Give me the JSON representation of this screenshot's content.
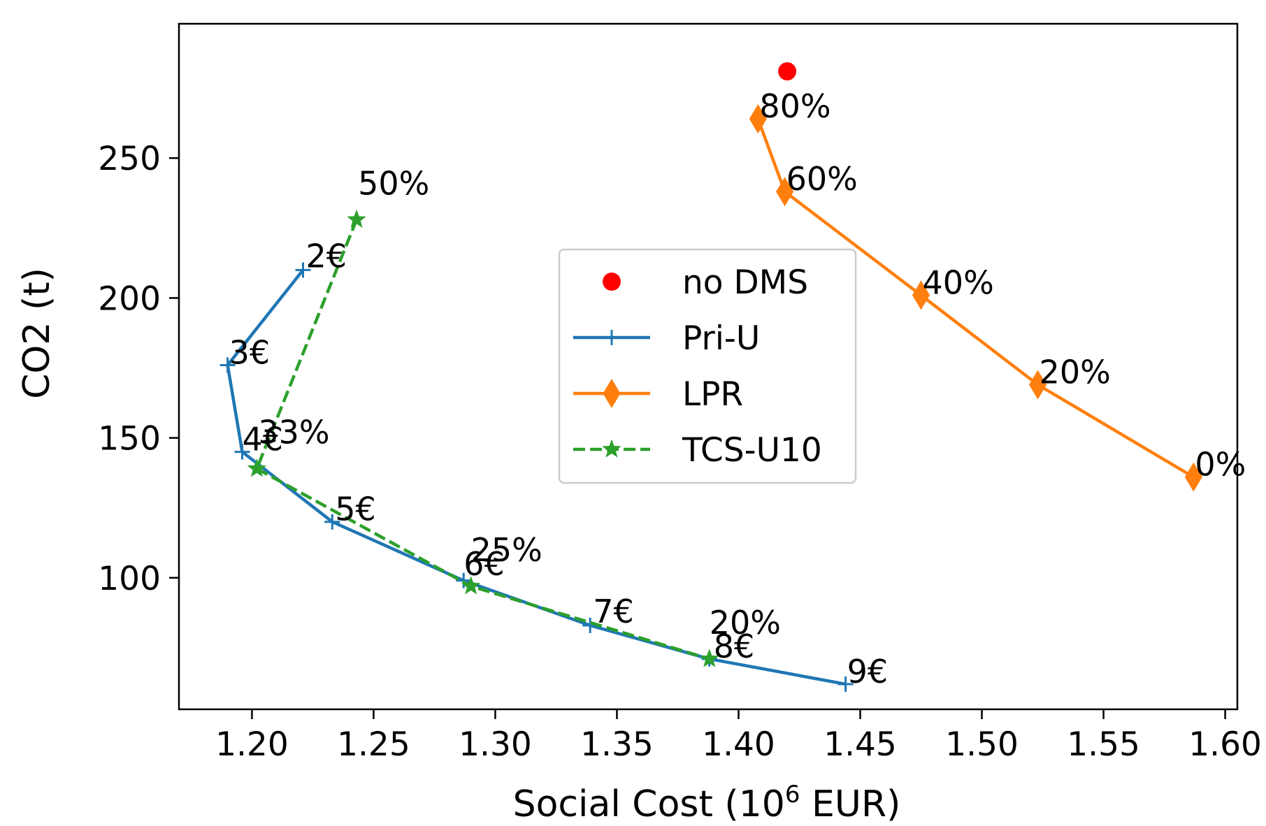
{
  "chart_data": {
    "type": "line",
    "xlabel_main": "Social Cost (10",
    "xlabel_sup": "6",
    "xlabel_end": " EUR)",
    "ylabel": "CO2 (t)",
    "xlim": [
      1.17,
      1.605
    ],
    "ylim": [
      53,
      298
    ],
    "xticks": [
      {
        "value": 1.2,
        "label": "1.20"
      },
      {
        "value": 1.25,
        "label": "1.25"
      },
      {
        "value": 1.3,
        "label": "1.30"
      },
      {
        "value": 1.35,
        "label": "1.35"
      },
      {
        "value": 1.4,
        "label": "1.40"
      },
      {
        "value": 1.45,
        "label": "1.45"
      },
      {
        "value": 1.5,
        "label": "1.50"
      },
      {
        "value": 1.55,
        "label": "1.55"
      },
      {
        "value": 1.6,
        "label": "1.60"
      }
    ],
    "yticks": [
      {
        "value": 100,
        "label": "100"
      },
      {
        "value": 150,
        "label": "150"
      },
      {
        "value": 200,
        "label": "200"
      },
      {
        "value": 250,
        "label": "250"
      }
    ],
    "legend": {
      "placement": "center"
    },
    "series": [
      {
        "name": "no DMS",
        "marker": "circle",
        "line": "none",
        "color": "#ff0000",
        "points": [
          {
            "x": 1.42,
            "y": 281,
            "label": ""
          }
        ]
      },
      {
        "name": "Pri-U",
        "marker": "plus",
        "line": "solid",
        "color": "#1f77b4",
        "points": [
          {
            "x": 1.221,
            "y": 210,
            "label": "2€"
          },
          {
            "x": 1.19,
            "y": 176,
            "label": "3€"
          },
          {
            "x": 1.196,
            "y": 145,
            "label": "4€"
          },
          {
            "x": 1.233,
            "y": 120,
            "label": "5€"
          },
          {
            "x": 1.287,
            "y": 99,
            "label": "6€"
          },
          {
            "x": 1.339,
            "y": 83,
            "label": "7€"
          },
          {
            "x": 1.388,
            "y": 71,
            "label": "8€"
          },
          {
            "x": 1.444,
            "y": 62,
            "label": "9€"
          }
        ]
      },
      {
        "name": "LPR",
        "marker": "diamond",
        "line": "solid",
        "color": "#ff7f0e",
        "points": [
          {
            "x": 1.408,
            "y": 264,
            "label": "80%"
          },
          {
            "x": 1.419,
            "y": 238,
            "label": "60%"
          },
          {
            "x": 1.475,
            "y": 201,
            "label": "40%"
          },
          {
            "x": 1.523,
            "y": 169,
            "label": "20%"
          },
          {
            "x": 1.587,
            "y": 136,
            "label": "0%"
          }
        ]
      },
      {
        "name": "TCS-U10",
        "marker": "star",
        "line": "dashed",
        "color": "#2ca02c",
        "points": [
          {
            "x": 1.243,
            "y": 228,
            "label": "50%"
          },
          {
            "x": 1.202,
            "y": 139,
            "label": "33%"
          },
          {
            "x": 1.29,
            "y": 97,
            "label": "25%"
          },
          {
            "x": 1.388,
            "y": 71,
            "label": "20%"
          }
        ]
      }
    ]
  }
}
